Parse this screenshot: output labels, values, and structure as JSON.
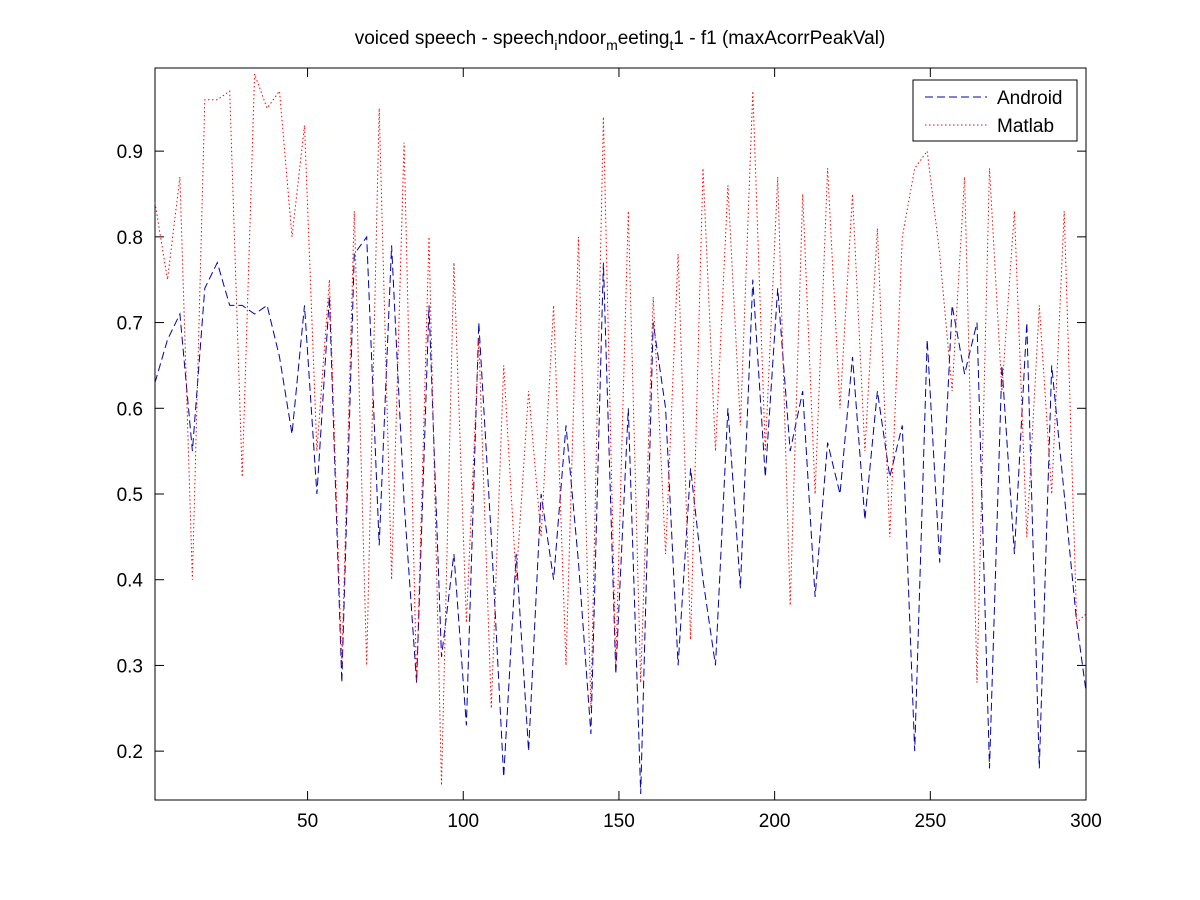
{
  "chart_data": {
    "type": "line",
    "title": [
      "voiced speech - speech",
      "i",
      "ndoor",
      "m",
      "eeting",
      "t",
      "1 - f1 (maxAcorrPeakVal)"
    ],
    "x": [
      1,
      5,
      9,
      13,
      17,
      21,
      25,
      29,
      33,
      37,
      41,
      45,
      49,
      53,
      57,
      61,
      65,
      69,
      73,
      77,
      81,
      85,
      89,
      93,
      97,
      101,
      105,
      109,
      113,
      117,
      121,
      125,
      129,
      133,
      137,
      141,
      145,
      149,
      153,
      157,
      161,
      165,
      169,
      173,
      177,
      181,
      185,
      189,
      193,
      197,
      201,
      205,
      209,
      213,
      217,
      221,
      225,
      229,
      233,
      237,
      241,
      245,
      249,
      253,
      257,
      261,
      265,
      269,
      273,
      277,
      281,
      285,
      289,
      293,
      297,
      300
    ],
    "series": [
      {
        "name": "Android",
        "color": "#0000b0",
        "dash": "dashed",
        "values": [
          0.63,
          0.68,
          0.71,
          0.55,
          0.74,
          0.77,
          0.72,
          0.72,
          0.71,
          0.72,
          0.66,
          0.57,
          0.72,
          0.5,
          0.73,
          0.28,
          0.78,
          0.8,
          0.44,
          0.79,
          0.49,
          0.28,
          0.72,
          0.31,
          0.43,
          0.23,
          0.7,
          0.45,
          0.17,
          0.43,
          0.2,
          0.5,
          0.4,
          0.58,
          0.42,
          0.22,
          0.77,
          0.29,
          0.6,
          0.15,
          0.7,
          0.6,
          0.3,
          0.53,
          0.4,
          0.3,
          0.6,
          0.39,
          0.75,
          0.52,
          0.74,
          0.55,
          0.62,
          0.38,
          0.56,
          0.5,
          0.66,
          0.47,
          0.62,
          0.52,
          0.58,
          0.2,
          0.68,
          0.42,
          0.72,
          0.64,
          0.7,
          0.18,
          0.65,
          0.43,
          0.7,
          0.18,
          0.65,
          0.5,
          0.35,
          0.27
        ]
      },
      {
        "name": "Matlab",
        "color": "#ff0000",
        "dash": "dotted",
        "values": [
          0.84,
          0.75,
          0.87,
          0.4,
          0.96,
          0.96,
          0.97,
          0.52,
          0.99,
          0.95,
          0.97,
          0.8,
          0.93,
          0.55,
          0.75,
          0.3,
          0.83,
          0.3,
          0.95,
          0.4,
          0.91,
          0.28,
          0.8,
          0.16,
          0.77,
          0.35,
          0.68,
          0.25,
          0.65,
          0.4,
          0.62,
          0.45,
          0.72,
          0.3,
          0.8,
          0.25,
          0.94,
          0.3,
          0.83,
          0.28,
          0.73,
          0.43,
          0.78,
          0.33,
          0.88,
          0.55,
          0.86,
          0.58,
          0.97,
          0.55,
          0.87,
          0.37,
          0.85,
          0.5,
          0.88,
          0.6,
          0.85,
          0.55,
          0.81,
          0.45,
          0.8,
          0.88,
          0.9,
          0.78,
          0.62,
          0.87,
          0.28,
          0.88,
          0.62,
          0.83,
          0.45,
          0.72,
          0.5,
          0.83,
          0.35,
          0.36
        ]
      }
    ],
    "xlim": [
      1,
      300
    ],
    "xticks": [
      50,
      100,
      150,
      200,
      250,
      300
    ],
    "ylim": [
      0.143,
      0.997
    ],
    "yticks": [
      0.2,
      0.3,
      0.4,
      0.5,
      0.6,
      0.7,
      0.8,
      0.9
    ],
    "legend": "top-right"
  }
}
